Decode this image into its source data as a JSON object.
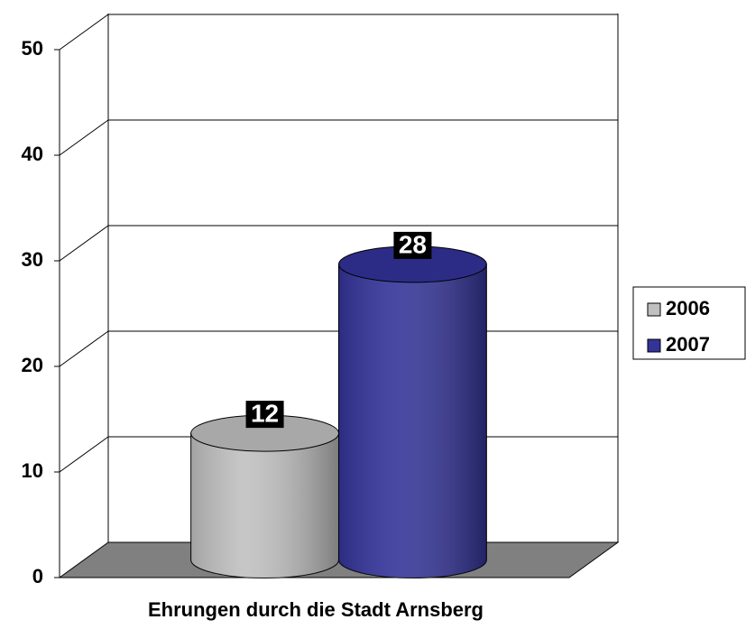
{
  "chart_data": {
    "type": "bar3d",
    "categories": [
      "Ehrungen durch die Stadt Arnsberg"
    ],
    "series": [
      {
        "name": "2006",
        "color": "#c0c0c0",
        "values": [
          12
        ]
      },
      {
        "name": "2007",
        "color": "#333399",
        "values": [
          28
        ]
      }
    ],
    "ylim": [
      0,
      50
    ],
    "yticks": [
      0,
      10,
      20,
      30,
      40,
      50
    ],
    "grid": true,
    "legend": "right"
  }
}
